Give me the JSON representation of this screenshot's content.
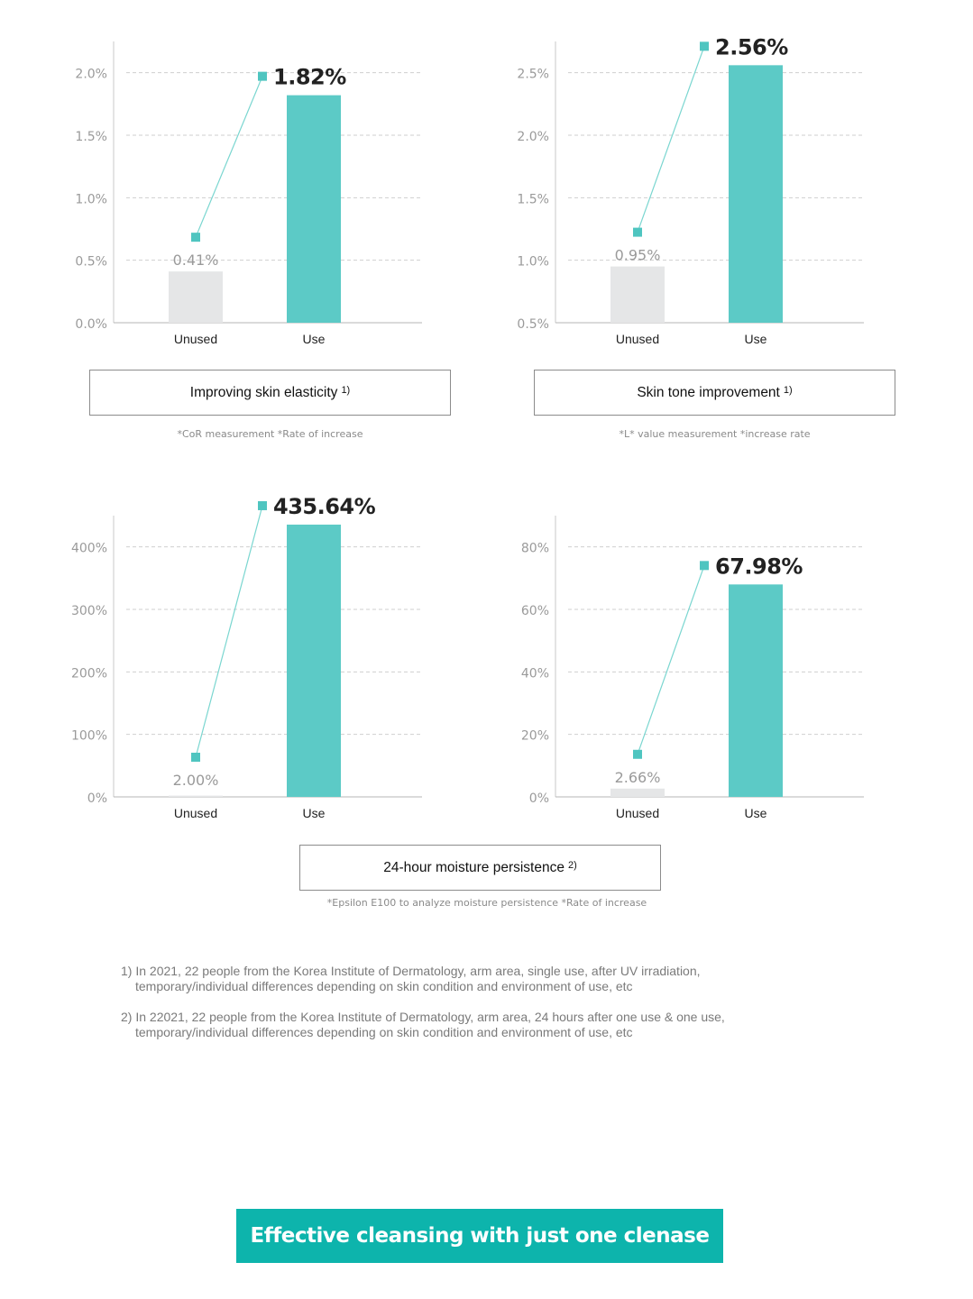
{
  "chart_data": [
    {
      "type": "bar",
      "categories": [
        "Unused",
        "Use"
      ],
      "values": [
        0.41,
        1.82
      ],
      "value_labels": [
        "0.41%",
        "1.82%"
      ],
      "yticks": [
        "0.0%",
        "0.5%",
        "1.0%",
        "1.5%",
        "2.0%"
      ],
      "ylim": [
        0,
        2.25
      ],
      "tick_values": [
        0,
        0.5,
        1.0,
        1.5,
        2.0
      ],
      "title": "Improving skin elasticity",
      "title_ref": "1)",
      "note": "*CoR measurement *Rate of increase",
      "grid": true,
      "colors": {
        "unused": "#e5e6e7",
        "use": "#5ccac6",
        "marker": "#4fc5c0",
        "line": "#7ad6d0"
      }
    },
    {
      "type": "bar",
      "categories": [
        "Unused",
        "Use"
      ],
      "values": [
        0.95,
        2.56
      ],
      "value_labels": [
        "0.95%",
        "2.56%"
      ],
      "yticks": [
        "0.5%",
        "1.0%",
        "1.5%",
        "2.0%",
        "2.5%"
      ],
      "ylim": [
        0.5,
        2.75
      ],
      "tick_values": [
        0.5,
        1.0,
        1.5,
        2.0,
        2.5
      ],
      "title": "Skin tone improvement",
      "title_ref": "1)",
      "note": "*L* value measurement *increase rate",
      "grid": true,
      "colors": {
        "unused": "#e5e6e7",
        "use": "#5ccac6",
        "marker": "#4fc5c0",
        "line": "#7ad6d0"
      }
    },
    {
      "type": "bar",
      "categories": [
        "Unused",
        "Use"
      ],
      "values": [
        2.0,
        435.64
      ],
      "value_labels": [
        "2.00%",
        "435.64%"
      ],
      "yticks": [
        "0%",
        "100%",
        "200%",
        "300%",
        "400%"
      ],
      "ylim": [
        0,
        450
      ],
      "tick_values": [
        0,
        100,
        200,
        300,
        400
      ],
      "grid": true,
      "colors": {
        "unused": "#e5e6e7",
        "use": "#5ccac6",
        "marker": "#4fc5c0",
        "line": "#7ad6d0"
      }
    },
    {
      "type": "bar",
      "categories": [
        "Unused",
        "Use"
      ],
      "values": [
        2.66,
        67.98
      ],
      "value_labels": [
        "2.66%",
        "67.98%"
      ],
      "yticks": [
        "0%",
        "20%",
        "40%",
        "60%",
        "80%"
      ],
      "ylim": [
        0,
        90
      ],
      "tick_values": [
        0,
        20,
        40,
        60,
        80
      ],
      "grid": true,
      "colors": {
        "unused": "#e5e6e7",
        "use": "#5ccac6",
        "marker": "#4fc5c0",
        "line": "#7ad6d0"
      }
    }
  ],
  "moisture_caption": {
    "title": "24-hour moisture persistence",
    "ref": "2)",
    "note": "*Epsilon E100 to analyze moisture persistence *Rate of increase"
  },
  "footnotes": [
    {
      "line1": "1) In 2021, 22 people from the Korea Institute of Dermatology, arm area, single use, after UV irradiation,",
      "line2": "temporary/individual differences depending on skin condition and environment of use, etc"
    },
    {
      "line1": "2) In 22021, 22 people from the Korea Institute of Dermatology, arm area, 24 hours after one use & one use,",
      "line2": "temporary/individual differences depending on skin condition and environment of use, etc"
    }
  ],
  "banner": {
    "text": "Effective cleansing with just one clenase"
  }
}
